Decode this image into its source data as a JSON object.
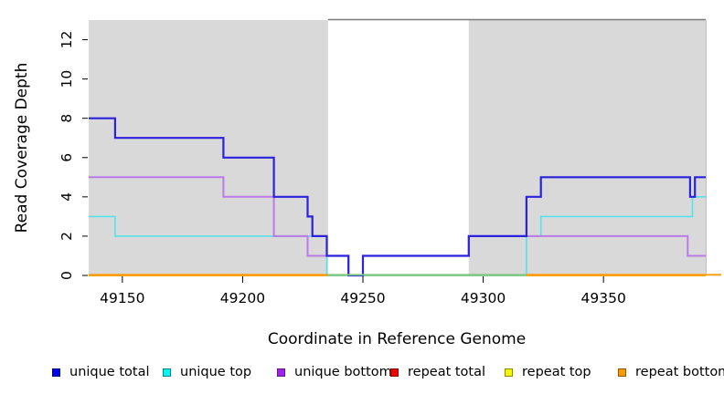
{
  "chart_data": {
    "type": "line",
    "step": true,
    "xlabel": "Coordinate in Reference Genome",
    "ylabel": "Read Coverage Depth",
    "xlim": [
      49136,
      49392.5
    ],
    "ylim": [
      0,
      13
    ],
    "x_ticks": [
      49150,
      49200,
      49250,
      49300,
      49350
    ],
    "y_ticks": [
      0,
      2,
      4,
      6,
      8,
      10,
      12
    ],
    "grid": false,
    "legend_position": "bottom",
    "background_shade_color": "#d9d9d9",
    "shaded_regions": [
      {
        "from": 49136,
        "to": 49235.5
      },
      {
        "from": 49294,
        "to": 49392.5
      }
    ],
    "bridge_line": {
      "from": 49235.5,
      "to": 49392.5,
      "color": "#7a7a7a"
    },
    "series": [
      {
        "name": "unique total",
        "color": "#2a22dd",
        "points": [
          [
            49136,
            8
          ],
          [
            49147,
            7
          ],
          [
            49192,
            6
          ],
          [
            49213,
            4
          ],
          [
            49227,
            3
          ],
          [
            49229,
            2
          ],
          [
            49235,
            1
          ],
          [
            49244,
            0
          ],
          [
            49250,
            1
          ],
          [
            49294,
            2
          ],
          [
            49318,
            4
          ],
          [
            49324,
            5
          ],
          [
            49386,
            4
          ],
          [
            49388,
            5
          ],
          [
            49392.5,
            5
          ]
        ]
      },
      {
        "name": "unique top",
        "color": "#55e2ea",
        "points": [
          [
            49136,
            3
          ],
          [
            49147,
            2
          ],
          [
            49235,
            0
          ],
          [
            49318,
            2
          ],
          [
            49324,
            3
          ],
          [
            49387,
            4
          ],
          [
            49392.5,
            4
          ]
        ]
      },
      {
        "name": "unique bottom",
        "color": "#bb7ae8",
        "points": [
          [
            49136,
            5
          ],
          [
            49192,
            4
          ],
          [
            49213,
            2
          ],
          [
            49227,
            1
          ],
          [
            49244,
            0
          ],
          [
            49250,
            1
          ],
          [
            49294,
            2
          ],
          [
            49385,
            1
          ],
          [
            49392.5,
            1
          ]
        ]
      },
      {
        "name": "repeat total",
        "color": "#ee0000",
        "points": [
          [
            49136,
            0
          ],
          [
            49392.5,
            0
          ]
        ]
      },
      {
        "name": "repeat top",
        "color": "#f5f500",
        "points": [
          [
            49136,
            0
          ],
          [
            49392.5,
            0
          ]
        ]
      },
      {
        "name": "repeat bottom",
        "color": "#ff9900",
        "points": [
          [
            49136,
            0
          ],
          [
            49392.5,
            0
          ]
        ]
      }
    ],
    "baseline_segments": [
      {
        "from": 49136,
        "to": 49235.5,
        "color": "#ff9900"
      },
      {
        "from": 49235.5,
        "to": 49318,
        "color": "#7dc87f"
      },
      {
        "from": 49318,
        "to": 49399,
        "color": "#ff9900"
      }
    ]
  },
  "legend": {
    "items": [
      {
        "label": "unique total",
        "fill": "#0000ee",
        "border": "#000088"
      },
      {
        "label": "unique top",
        "fill": "#00f5f5",
        "border": "#00868b"
      },
      {
        "label": "unique bottom",
        "fill": "#a020f0",
        "border": "#551a8b"
      },
      {
        "label": "repeat total",
        "fill": "#ee0000",
        "border": "#8b0000"
      },
      {
        "label": "repeat top",
        "fill": "#f5f500",
        "border": "#8b8b00"
      },
      {
        "label": "repeat bottom",
        "fill": "#ff9900",
        "border": "#8b5a00"
      }
    ]
  }
}
